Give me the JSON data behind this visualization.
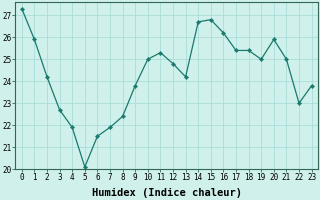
{
  "title": "",
  "xlabel": "Humidex (Indice chaleur)",
  "ylabel": "",
  "x": [
    0,
    1,
    2,
    3,
    4,
    5,
    6,
    7,
    8,
    9,
    10,
    11,
    12,
    13,
    14,
    15,
    16,
    17,
    18,
    19,
    20,
    21,
    22,
    23
  ],
  "y": [
    27.3,
    25.9,
    24.2,
    22.7,
    21.9,
    20.1,
    21.5,
    21.9,
    22.4,
    23.8,
    25.0,
    25.3,
    24.8,
    24.2,
    26.7,
    26.8,
    26.2,
    25.4,
    25.4,
    25.0,
    25.9,
    25.0,
    23.0,
    23.8
  ],
  "line_color": "#1a7a6e",
  "marker": "D",
  "marker_size": 2.2,
  "bg_color": "#cff0eb",
  "grid_color": "#aaddda",
  "xlim": [
    -0.5,
    23.5
  ],
  "ylim": [
    20,
    27.6
  ],
  "yticks": [
    20,
    21,
    22,
    23,
    24,
    25,
    26,
    27
  ],
  "xticks": [
    0,
    1,
    2,
    3,
    4,
    5,
    6,
    7,
    8,
    9,
    10,
    11,
    12,
    13,
    14,
    15,
    16,
    17,
    18,
    19,
    20,
    21,
    22,
    23
  ],
  "tick_fontsize": 5.5,
  "label_fontsize": 7.5,
  "axis_color": "#336655"
}
